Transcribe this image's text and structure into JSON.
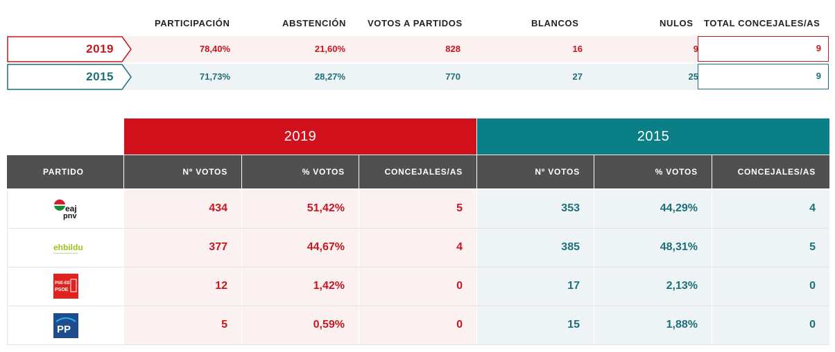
{
  "summary": {
    "headers": [
      "PARTICIPACIÓN",
      "ABSTENCIÓN",
      "VOTOS A PARTIDOS",
      "BLANCOS",
      "NULOS",
      "TOTAL CONCEJALES/AS"
    ],
    "rows": [
      {
        "year": "2019",
        "participacion": "78,40%",
        "abstencion": "21,60%",
        "votos_partidos": "828",
        "blancos": "16",
        "nulos": "9",
        "total_concejales": "9"
      },
      {
        "year": "2015",
        "participacion": "71,73%",
        "abstencion": "28,27%",
        "votos_partidos": "770",
        "blancos": "27",
        "nulos": "25",
        "total_concejales": "9"
      }
    ]
  },
  "results": {
    "year_2019": "2019",
    "year_2015": "2015",
    "col_partido": "PARTIDO",
    "col_votos": "Nº VOTOS",
    "col_pct": "% VOTOS",
    "col_concejales": "CONCEJALES/AS",
    "parties": [
      {
        "logo": "eaj-pnv-logo",
        "logo_text_1": "eaj",
        "logo_text_2": "pnv",
        "v2019": "434",
        "p2019": "51,42%",
        "c2019": "5",
        "v2015": "353",
        "p2015": "44,29%",
        "c2015": "4"
      },
      {
        "logo": "ehbildu-logo",
        "logo_text_1": "ehbildu",
        "v2019": "377",
        "p2019": "44,67%",
        "c2019": "4",
        "v2015": "385",
        "p2015": "48,31%",
        "c2015": "5"
      },
      {
        "logo": "pse-ee-psoe-logo",
        "logo_text_1": "PSE-EE",
        "logo_text_2": "PSOE",
        "v2019": "12",
        "p2019": "1,42%",
        "c2019": "0",
        "v2015": "17",
        "p2015": "2,13%",
        "c2015": "0"
      },
      {
        "logo": "pp-logo",
        "logo_text_1": "PP",
        "v2019": "5",
        "p2019": "0,59%",
        "c2019": "0",
        "v2015": "15",
        "p2015": "1,88%",
        "c2015": "0"
      }
    ]
  },
  "colors": {
    "red": "#c9151c",
    "red_header": "#d0101a",
    "teal": "#1d6f7a",
    "teal_header": "#0a7f86",
    "red_bg": "#fbf1f1",
    "teal_bg": "#eef4f6",
    "dark_header": "#505050"
  }
}
